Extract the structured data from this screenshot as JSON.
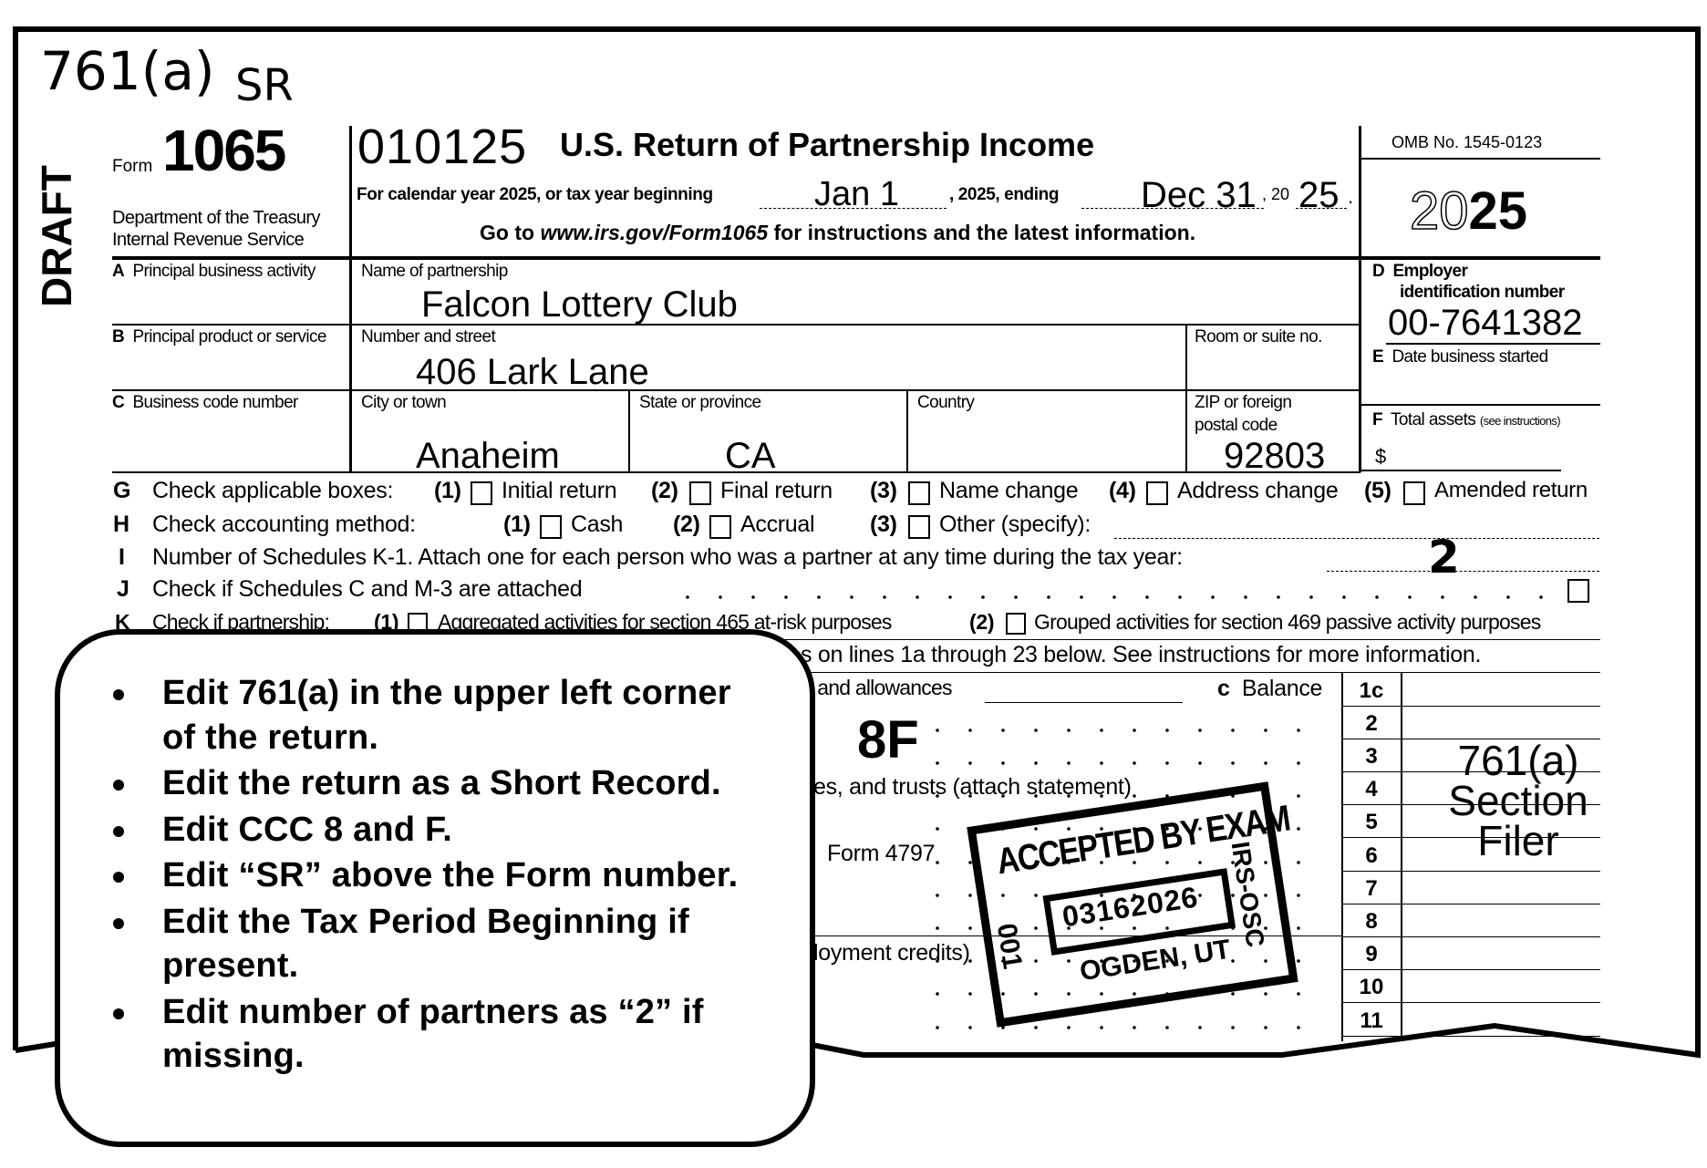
{
  "annotations": {
    "code_761a": "761(a)",
    "short_record": "SR",
    "draft_watermark": "DRAFT",
    "ccc": "8F",
    "section_filer": [
      "761(a)",
      "Section",
      "Filer"
    ]
  },
  "header": {
    "form_prefix": "Form",
    "form_number": "1065",
    "dept_line1": "Department of the Treasury",
    "dept_line2": "Internal Revenue Service",
    "form_code": "010125",
    "title": "U.S. Return of Partnership Income",
    "calendar_text": "For calendar year 2025, or tax year beginning",
    "begin_value": "Jan 1",
    "ending_text": ", 2025, ending",
    "end_value": "Dec 31",
    "year_prefix": ", 20",
    "year_value": "25",
    "period": ".",
    "goto_prefix": "Go to ",
    "goto_url": "www.irs.gov/Form1065",
    "goto_suffix": " for instructions and the latest information.",
    "omb": "OMB No. 1545-0123",
    "year_outline": "20",
    "year_bold": "25"
  },
  "entity": {
    "a_letter": "A",
    "a_label": "Principal business activity",
    "b_letter": "B",
    "b_label": "Principal product or service",
    "c_letter": "C",
    "c_label": "Business code number",
    "name_label": "Name of partnership",
    "name_value": "Falcon Lottery Club",
    "street_label": "Number and street",
    "street_value": "406 Lark Lane",
    "room_label": "Room or suite no.",
    "city_label": "City or town",
    "city_value": "Anaheim",
    "state_label": "State or province",
    "state_value": "CA",
    "country_label": "Country",
    "zip_label_1": "ZIP or foreign",
    "zip_label_2": "postal code",
    "zip_value": "92803",
    "d_letter": "D",
    "d_label_1": "Employer",
    "d_label_2": "identification number",
    "ein_value": "00-7641382",
    "e_letter": "E",
    "e_label": "Date business started",
    "f_letter": "F",
    "f_label": "Total assets",
    "f_note": "(see instructions)",
    "f_dollar": "$"
  },
  "checks": {
    "g": {
      "letter": "G",
      "label": "Check applicable boxes:",
      "options": [
        {
          "num": "(1)",
          "label": "Initial return"
        },
        {
          "num": "(2)",
          "label": "Final return"
        },
        {
          "num": "(3)",
          "label": "Name change"
        },
        {
          "num": "(4)",
          "label": "Address change"
        },
        {
          "num": "(5)",
          "label": "Amended return"
        }
      ]
    },
    "h": {
      "letter": "H",
      "label": "Check accounting method:",
      "options": [
        {
          "num": "(1)",
          "label": "Cash"
        },
        {
          "num": "(2)",
          "label": "Accrual"
        },
        {
          "num": "(3)",
          "label": "Other (specify):"
        }
      ]
    },
    "i": {
      "letter": "I",
      "label": "Number of Schedules K-1. Attach one for each person who was a partner at any time during the tax year:",
      "value": "2"
    },
    "j": {
      "letter": "J",
      "label": "Check if Schedules C and M-3 are attached"
    },
    "k": {
      "letter": "K",
      "label": "Check if partnership:",
      "opt1_num": "(1)",
      "opt1": "Aggregated activities for section 465 at-risk purposes",
      "opt2_num": "(2)",
      "opt2": "Grouped activities for section 469 passive activity purposes"
    }
  },
  "income": {
    "caution_fragment": "s on lines 1a through 23 below. See instructions for more information.",
    "line1b_fragment": "s and allowances",
    "line1c_letter": "c",
    "line1c_label": "Balance",
    "line4_fragment": "es, and trusts (attach statement)",
    "line6_fragment": "Form 4797",
    "line9_fragment": "loyment credits)",
    "line_numbers": [
      "1c",
      "2",
      "3",
      "4",
      "5",
      "6",
      "7",
      "8",
      "9",
      "10",
      "11"
    ]
  },
  "stamp": {
    "top": "ACCEPTED BY EXAM",
    "date": "03162026",
    "left": "001",
    "right": "IRS-OSC",
    "bottom": "OGDEN, UT"
  },
  "instructions": [
    "Edit 761(a) in the upper left corner of the return.",
    "Edit the return as a Short Record.",
    "Edit CCC 8 and F.",
    "Edit “SR” above the Form number.",
    "Edit the Tax Period Beginning if present.",
    "Edit number of partners as “2” if missing."
  ]
}
